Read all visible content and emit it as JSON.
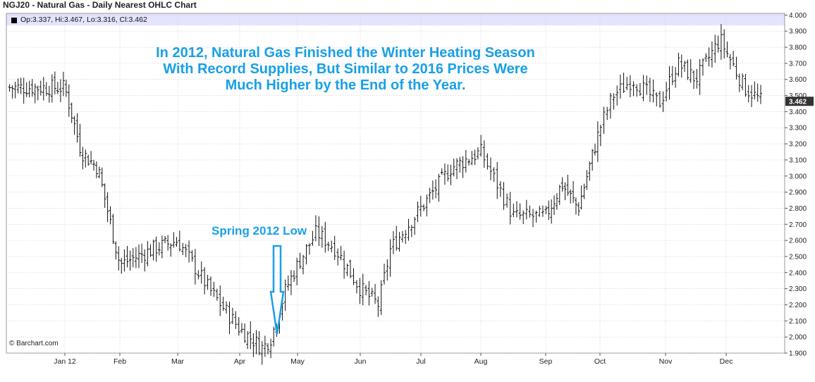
{
  "header": {
    "title": "NGJ20 - Natural Gas - Daily Nearest OHLC Chart"
  },
  "legend": {
    "text": "Op:3.337, Hi:3.467, Lo:3.316, Cl:3.462"
  },
  "annotations": {
    "headline_line1": "In 2012, Natural Gas Finished the Winter Heating Season",
    "headline_line2": "With Record Supplies, But Similar to 2016 Prices Were",
    "headline_line3": "Much Higher by the End of the Year.",
    "low_label": "Spring 2012 Low"
  },
  "footer": {
    "copyright": "© Barchart.com"
  },
  "colors": {
    "bars": "#111111",
    "grid": "#bdbdbd",
    "legend_bg": "#e4e4ff",
    "annotation": "#19a0e6",
    "last_price_bg": "#333333"
  },
  "chart_data": {
    "type": "ohlc",
    "title": "NGJ20 - Natural Gas - Daily Nearest OHLC Chart",
    "x_tick_labels": [
      "Jan 12",
      "Feb",
      "Mar",
      "Apr",
      "May",
      "Jun",
      "Jul",
      "Aug",
      "Sep",
      "Oct",
      "Nov",
      "Dec"
    ],
    "y_tick_labels": [
      "1.900",
      "2.000",
      "2.100",
      "2.200",
      "2.300",
      "2.400",
      "2.500",
      "2.600",
      "2.700",
      "2.800",
      "2.900",
      "3.000",
      "3.100",
      "3.200",
      "3.300",
      "3.400",
      "3.500",
      "3.600",
      "3.700",
      "3.800",
      "3.900",
      "4.000"
    ],
    "ylim": [
      1.9,
      4.0
    ],
    "last_price": "3.462",
    "grid": true,
    "approx_close_path": {
      "month_index": [
        0,
        0.3,
        0.6,
        1.0,
        1.3,
        1.6,
        2.0,
        2.5,
        3.0,
        3.4,
        3.55,
        3.8,
        4.0,
        4.3,
        4.6,
        5.0,
        5.3,
        5.5,
        6.0,
        6.5,
        7.0,
        7.5,
        8.0,
        8.3,
        8.6,
        9.0,
        9.2,
        9.5,
        9.9,
        10.2,
        10.5,
        10.9,
        11.3,
        11.6
      ],
      "close": [
        3.55,
        3.15,
        3.05,
        2.45,
        2.5,
        2.55,
        2.6,
        2.3,
        2.05,
        1.93,
        2.0,
        2.3,
        2.45,
        2.65,
        2.55,
        2.3,
        2.2,
        2.55,
        2.8,
        3.05,
        3.15,
        2.75,
        2.75,
        2.95,
        2.8,
        3.3,
        3.5,
        3.6,
        3.45,
        3.7,
        3.6,
        3.85,
        3.55,
        3.46
      ]
    }
  }
}
